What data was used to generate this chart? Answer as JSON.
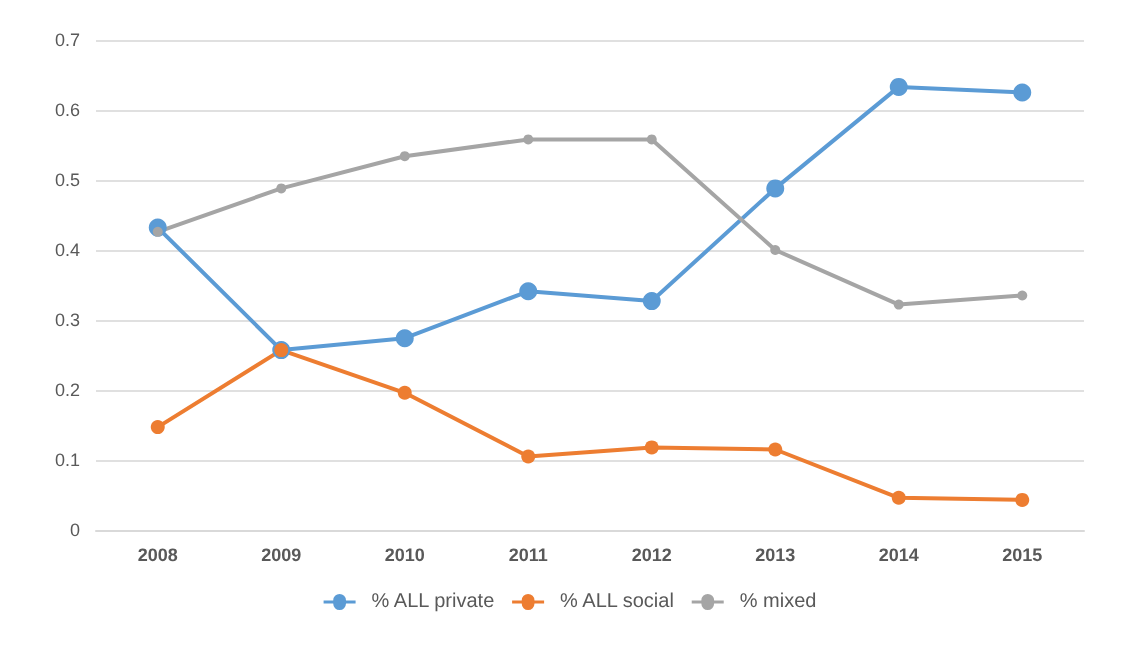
{
  "chart_data": {
    "type": "line",
    "categories": [
      "2008",
      "2009",
      "2010",
      "2011",
      "2012",
      "2013",
      "2014",
      "2015"
    ],
    "series": [
      {
        "name": "% ALL private",
        "color": "#5b9bd5",
        "values": [
          0.432,
          0.257,
          0.274,
          0.341,
          0.327,
          0.488,
          0.633,
          0.625
        ]
      },
      {
        "name": "% ALL social",
        "color": "#ed7d31",
        "values": [
          0.147,
          0.257,
          0.196,
          0.105,
          0.118,
          0.115,
          0.046,
          0.043
        ]
      },
      {
        "name": "% mixed",
        "color": "#a5a5a5",
        "values": [
          0.426,
          0.488,
          0.534,
          0.558,
          0.558,
          0.4,
          0.322,
          0.335
        ]
      }
    ],
    "ylim": [
      0,
      0.7
    ],
    "yticks": [
      0,
      0.1,
      0.2,
      0.3,
      0.4,
      0.5,
      0.6,
      0.7
    ],
    "grid": "y",
    "legend": "bottom",
    "marker": "circle",
    "line_style": "solid"
  }
}
